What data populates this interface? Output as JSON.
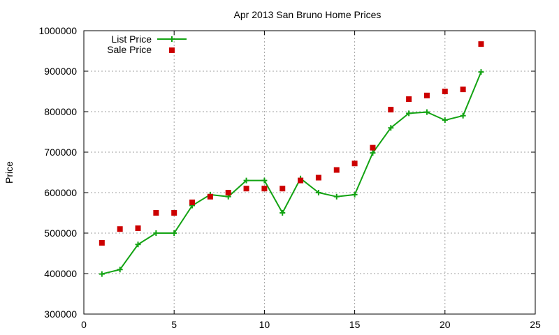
{
  "chart_data": {
    "type": "line",
    "title": "Apr 2013 San Bruno Home Prices",
    "xlabel": "",
    "ylabel": "Price",
    "xlim": [
      0,
      25
    ],
    "ylim": [
      300000,
      1000000
    ],
    "xticks": [
      0,
      5,
      10,
      15,
      20,
      25
    ],
    "yticks": [
      300000,
      400000,
      500000,
      600000,
      700000,
      800000,
      900000,
      1000000
    ],
    "grid": true,
    "legend_position": "top-left",
    "series": [
      {
        "name": "List Price",
        "style": "line+cross",
        "color": "#13a313",
        "x": [
          1,
          2,
          3,
          4,
          5,
          6,
          7,
          8,
          9,
          10,
          11,
          12,
          13,
          14,
          15,
          16,
          17,
          18,
          19,
          20,
          21,
          22
        ],
        "y": [
          399000,
          410000,
          472000,
          500000,
          500000,
          568000,
          595000,
          590000,
          630000,
          630000,
          550000,
          635000,
          600000,
          590000,
          595000,
          698000,
          760000,
          796000,
          799000,
          779000,
          790000,
          898000
        ]
      },
      {
        "name": "Sale Price",
        "style": "square",
        "color": "#cc0000",
        "x": [
          1,
          2,
          3,
          4,
          5,
          6,
          7,
          8,
          9,
          10,
          11,
          12,
          13,
          14,
          15,
          16,
          17,
          18,
          19,
          20,
          21,
          22
        ],
        "y": [
          476000,
          510000,
          512000,
          550000,
          550000,
          576000,
          590000,
          600000,
          610000,
          610000,
          610000,
          630000,
          637000,
          656000,
          672000,
          711000,
          805000,
          831000,
          840000,
          850000,
          855000,
          967000
        ]
      }
    ]
  }
}
